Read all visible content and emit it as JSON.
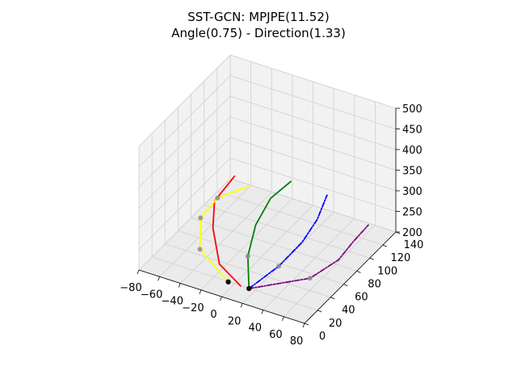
{
  "chart_data": {
    "type": "line3d",
    "title": "SST-GCN: MPJPE(11.52)",
    "subtitle": "Angle(0.75) - Direction(1.33)",
    "xlabel": "",
    "ylabel": "",
    "zlabel": "",
    "xlim": [
      -80,
      80
    ],
    "ylim": [
      0,
      140
    ],
    "zlim": [
      200,
      500
    ],
    "x_ticks": [
      "−80",
      "−60",
      "−40",
      "−20",
      "0",
      "20",
      "40",
      "60",
      "80"
    ],
    "y_ticks": [
      "0",
      "20",
      "40",
      "60",
      "80",
      "100",
      "120",
      "140"
    ],
    "z_ticks": [
      "200",
      "250",
      "300",
      "350",
      "400",
      "450",
      "500"
    ],
    "grid": true,
    "series": [
      {
        "color": "#ff0000",
        "kind": "solid",
        "points": [
          [
            12,
            10,
            220
          ],
          [
            -18,
            25,
            225
          ],
          [
            -40,
            50,
            255
          ],
          [
            -48,
            65,
            290
          ],
          [
            -38,
            80,
            335
          ]
        ]
      },
      {
        "color": "#ffff00",
        "kind": "solid",
        "points": [
          [
            0,
            10,
            220
          ],
          [
            -40,
            30,
            235
          ],
          [
            -52,
            50,
            270
          ],
          [
            -45,
            65,
            300
          ],
          [
            -25,
            80,
            320
          ]
        ]
      },
      {
        "color": "#008000",
        "kind": "solid",
        "points": [
          [
            20,
            10,
            220
          ],
          [
            0,
            40,
            235
          ],
          [
            -5,
            60,
            275
          ],
          [
            0,
            75,
            320
          ],
          [
            10,
            90,
            345
          ]
        ]
      },
      {
        "color": "#0000ff",
        "kind": "dashed",
        "points": [
          [
            20,
            10,
            220
          ],
          [
            30,
            40,
            235
          ],
          [
            40,
            60,
            270
          ],
          [
            45,
            75,
            305
          ],
          [
            45,
            90,
            340
          ]
        ]
      },
      {
        "color": "#800080",
        "kind": "dashed",
        "points": [
          [
            20,
            10,
            220
          ],
          [
            60,
            40,
            230
          ],
          [
            75,
            60,
            255
          ],
          [
            80,
            75,
            280
          ],
          [
            85,
            90,
            300
          ]
        ]
      }
    ],
    "joints": [
      [
        0,
        10,
        220
      ],
      [
        20,
        10,
        220
      ],
      [
        -40,
        30,
        235
      ],
      [
        -52,
        50,
        270
      ],
      [
        -45,
        65,
        300
      ],
      [
        0,
        40,
        235
      ],
      [
        30,
        40,
        235
      ],
      [
        60,
        40,
        230
      ]
    ],
    "root_joints": [
      [
        0,
        10,
        220
      ],
      [
        20,
        10,
        220
      ]
    ]
  }
}
